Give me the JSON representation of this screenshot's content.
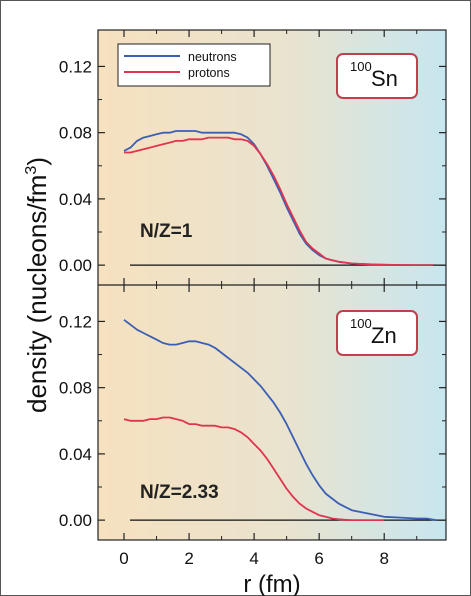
{
  "chart_data": [
    {
      "type": "line",
      "panel": "top",
      "nucleus_mass": "100",
      "nucleus_symbol": "Sn",
      "annotation": "N/Z=1",
      "legend": {
        "placement": "top-left",
        "entries": [
          "neutrons",
          "protons"
        ]
      },
      "xlabel": "r (fm)",
      "ylabel": "density (nucleons/fm³)",
      "ylabel_main": "density (nucleons/fm",
      "ylabel_sup": "3",
      "ylabel_tail": ")",
      "xlim": [
        -0.8,
        9.9
      ],
      "ylim": [
        -0.012,
        0.142
      ],
      "yticks": [
        "0.00",
        "0.04",
        "0.08",
        "0.12"
      ],
      "ytick_values": [
        0.0,
        0.04,
        0.08,
        0.12
      ],
      "series": [
        {
          "name": "neutrons",
          "color": "#3b5fb5",
          "x": [
            0,
            0.2,
            0.4,
            0.6,
            0.8,
            1.0,
            1.2,
            1.4,
            1.6,
            1.8,
            2.0,
            2.2,
            2.4,
            2.6,
            2.8,
            3.0,
            3.2,
            3.4,
            3.6,
            3.8,
            4.0,
            4.2,
            4.4,
            4.6,
            4.8,
            5.0,
            5.2,
            5.4,
            5.6,
            5.8,
            6.0,
            6.2,
            6.4,
            6.6,
            6.8,
            7.0,
            7.5,
            8.0,
            8.5,
            9.0,
            9.5
          ],
          "y": [
            0.069,
            0.071,
            0.075,
            0.077,
            0.078,
            0.079,
            0.08,
            0.08,
            0.081,
            0.081,
            0.081,
            0.081,
            0.08,
            0.08,
            0.08,
            0.08,
            0.08,
            0.08,
            0.079,
            0.077,
            0.073,
            0.067,
            0.06,
            0.052,
            0.044,
            0.035,
            0.027,
            0.019,
            0.013,
            0.009,
            0.006,
            0.004,
            0.003,
            0.002,
            0.0015,
            0.001,
            0.0005,
            0.0002,
            0.0001,
            0.0,
            0.0
          ]
        },
        {
          "name": "protons",
          "color": "#e0344f",
          "x": [
            0,
            0.2,
            0.4,
            0.6,
            0.8,
            1.0,
            1.2,
            1.4,
            1.6,
            1.8,
            2.0,
            2.2,
            2.4,
            2.6,
            2.8,
            3.0,
            3.2,
            3.4,
            3.6,
            3.8,
            4.0,
            4.2,
            4.4,
            4.6,
            4.8,
            5.0,
            5.2,
            5.4,
            5.6,
            5.8,
            6.0,
            6.2,
            6.4,
            6.6,
            6.8,
            7.0,
            7.5,
            8.0,
            8.5,
            9.0,
            9.5
          ],
          "y": [
            0.068,
            0.068,
            0.069,
            0.07,
            0.071,
            0.072,
            0.073,
            0.074,
            0.075,
            0.075,
            0.076,
            0.076,
            0.076,
            0.077,
            0.077,
            0.077,
            0.077,
            0.076,
            0.076,
            0.075,
            0.072,
            0.067,
            0.061,
            0.054,
            0.046,
            0.037,
            0.029,
            0.021,
            0.014,
            0.01,
            0.007,
            0.004,
            0.003,
            0.002,
            0.0015,
            0.001,
            0.0005,
            0.0002,
            0.0001,
            0.0,
            0.0
          ]
        }
      ]
    },
    {
      "type": "line",
      "panel": "bottom",
      "nucleus_mass": "100",
      "nucleus_symbol": "Zn",
      "annotation": "N/Z=2.33",
      "xlabel": "r (fm)",
      "xlim": [
        -0.8,
        9.9
      ],
      "ylim": [
        -0.012,
        0.142
      ],
      "xticks": [
        "0",
        "2",
        "4",
        "6",
        "8"
      ],
      "xtick_values": [
        0,
        2,
        4,
        6,
        8
      ],
      "yticks": [
        "0.00",
        "0.04",
        "0.08",
        "0.12"
      ],
      "ytick_values": [
        0.0,
        0.04,
        0.08,
        0.12
      ],
      "series": [
        {
          "name": "neutrons",
          "color": "#3b5fb5",
          "x": [
            0,
            0.2,
            0.4,
            0.6,
            0.8,
            1.0,
            1.2,
            1.4,
            1.6,
            1.8,
            2.0,
            2.2,
            2.4,
            2.6,
            2.8,
            3.0,
            3.2,
            3.4,
            3.6,
            3.8,
            4.0,
            4.2,
            4.4,
            4.6,
            4.8,
            5.0,
            5.2,
            5.4,
            5.6,
            5.8,
            6.0,
            6.2,
            6.4,
            6.6,
            6.8,
            7.0,
            7.5,
            8.0,
            8.5,
            9.0,
            9.3,
            9.6
          ],
          "y": [
            0.121,
            0.118,
            0.115,
            0.113,
            0.111,
            0.109,
            0.107,
            0.106,
            0.106,
            0.107,
            0.108,
            0.108,
            0.107,
            0.106,
            0.104,
            0.101,
            0.098,
            0.095,
            0.092,
            0.089,
            0.085,
            0.081,
            0.076,
            0.071,
            0.065,
            0.058,
            0.05,
            0.042,
            0.034,
            0.027,
            0.021,
            0.016,
            0.013,
            0.01,
            0.008,
            0.006,
            0.004,
            0.002,
            0.0015,
            0.001,
            0.001,
            0.0
          ]
        },
        {
          "name": "protons",
          "color": "#e0344f",
          "x": [
            0,
            0.2,
            0.4,
            0.6,
            0.8,
            1.0,
            1.2,
            1.4,
            1.6,
            1.8,
            2.0,
            2.2,
            2.4,
            2.6,
            2.8,
            3.0,
            3.2,
            3.4,
            3.6,
            3.8,
            4.0,
            4.2,
            4.4,
            4.6,
            4.8,
            5.0,
            5.2,
            5.4,
            5.6,
            5.8,
            6.0,
            6.2,
            6.4,
            6.6,
            6.8,
            7.0,
            7.5,
            8.0
          ],
          "y": [
            0.061,
            0.06,
            0.06,
            0.06,
            0.061,
            0.061,
            0.062,
            0.062,
            0.061,
            0.06,
            0.058,
            0.058,
            0.057,
            0.057,
            0.057,
            0.056,
            0.056,
            0.055,
            0.053,
            0.05,
            0.046,
            0.042,
            0.037,
            0.031,
            0.025,
            0.019,
            0.014,
            0.01,
            0.007,
            0.005,
            0.003,
            0.002,
            0.001,
            0.0005,
            0.0002,
            0.0,
            0.0,
            0.0
          ]
        }
      ]
    }
  ],
  "colors": {
    "gradient_left": "#f6e1bf",
    "gradient_right": "#c7e6ef",
    "badge_border": "#c0404e",
    "neutrons": "#3b5fb5",
    "protons": "#e0344f"
  }
}
